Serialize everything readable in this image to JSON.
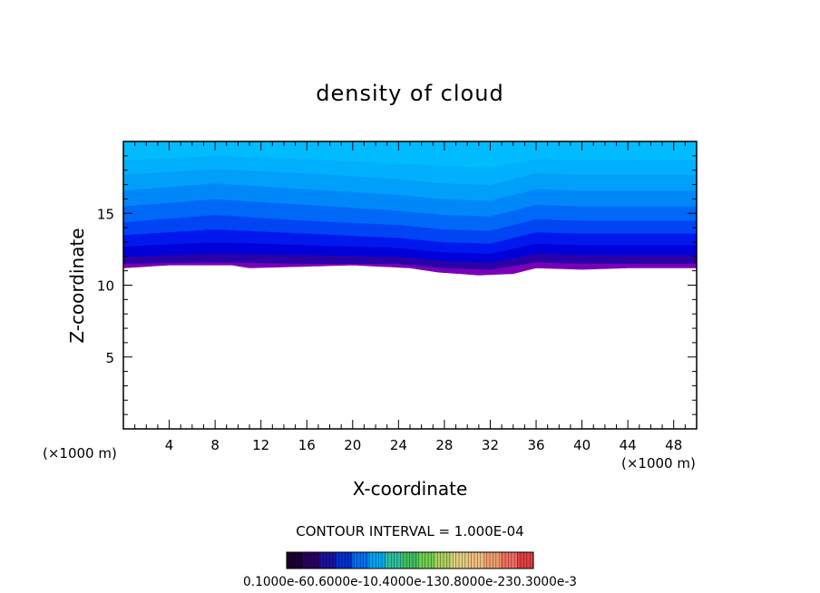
{
  "chart_data": {
    "type": "heatmap",
    "title": "density of cloud",
    "xlabel": "X-coordinate",
    "ylabel": "Z-coordinate",
    "x_unit": "(×1000 m)",
    "y_unit": "(×1000 m)",
    "xlim": [
      0,
      50
    ],
    "ylim": [
      0,
      20
    ],
    "x_ticks": [
      4,
      8,
      12,
      16,
      20,
      24,
      28,
      32,
      36,
      40,
      44,
      48
    ],
    "y_ticks": [
      5,
      10,
      15
    ],
    "contour_interval_text": "CONTOUR INTERVAL = 1.000E-04",
    "colorbar_labels_text": "0.1000e-60.6000e-10.4000e-130.8000e-230.3000e-3",
    "cloud_base_z": [
      {
        "x": 0,
        "z": 11.2
      },
      {
        "x": 4,
        "z": 11.4
      },
      {
        "x": 9.5,
        "z": 11.4
      },
      {
        "x": 11,
        "z": 11.2
      },
      {
        "x": 20,
        "z": 11.4
      },
      {
        "x": 25,
        "z": 11.2
      },
      {
        "x": 27.5,
        "z": 10.9
      },
      {
        "x": 31,
        "z": 10.7
      },
      {
        "x": 34,
        "z": 10.8
      },
      {
        "x": 36,
        "z": 11.2
      },
      {
        "x": 40,
        "z": 11.1
      },
      {
        "x": 44,
        "z": 11.2
      },
      {
        "x": 50,
        "z": 11.2
      }
    ],
    "band_boundaries_z": [
      {
        "x": 0,
        "z": [
          11.5,
          12.0,
          12.7,
          13.5,
          14.4,
          15.5,
          16.6,
          17.7,
          18.7
        ]
      },
      {
        "x": 8,
        "z": [
          11.6,
          12.2,
          13.0,
          13.9,
          14.9,
          16.0,
          17.1,
          18.1,
          19.0
        ]
      },
      {
        "x": 16,
        "z": [
          11.5,
          12.1,
          12.8,
          13.6,
          14.5,
          15.6,
          16.7,
          17.8,
          18.8
        ]
      },
      {
        "x": 24,
        "z": [
          11.5,
          12.0,
          12.6,
          13.3,
          14.2,
          15.2,
          16.3,
          17.4,
          18.5
        ]
      },
      {
        "x": 28,
        "z": [
          11.2,
          11.7,
          12.3,
          13.0,
          13.9,
          14.9,
          16.0,
          17.1,
          18.3
        ]
      },
      {
        "x": 32,
        "z": [
          11.1,
          11.6,
          12.2,
          12.9,
          13.8,
          14.8,
          15.9,
          17.0,
          18.2
        ]
      },
      {
        "x": 36,
        "z": [
          11.6,
          12.2,
          12.9,
          13.7,
          14.6,
          15.6,
          16.7,
          17.8,
          18.8
        ]
      },
      {
        "x": 40,
        "z": [
          11.5,
          12.1,
          12.8,
          13.6,
          14.5,
          15.5,
          16.6,
          17.7,
          18.7
        ]
      },
      {
        "x": 44,
        "z": [
          11.5,
          12.1,
          12.8,
          13.6,
          14.5,
          15.5,
          16.6,
          17.7,
          18.7
        ]
      },
      {
        "x": 50,
        "z": [
          11.5,
          12.1,
          12.8,
          13.6,
          14.5,
          15.5,
          16.6,
          17.7,
          18.7
        ]
      }
    ],
    "band_colors": [
      "#7a00b8",
      "#2a00a8",
      "#0000d8",
      "#0018ee",
      "#0044f4",
      "#0068f6",
      "#0088f8",
      "#00a0fa",
      "#00b0fc",
      "#00bcff"
    ],
    "colorbar_colors": [
      "#1a0030",
      "#2a0060",
      "#1a10a0",
      "#0030d0",
      "#0070f0",
      "#00a8f0",
      "#30c0a0",
      "#40c060",
      "#70d050",
      "#b0d060",
      "#e0d080",
      "#f0c080",
      "#f0a070",
      "#f07060",
      "#e04040"
    ]
  }
}
